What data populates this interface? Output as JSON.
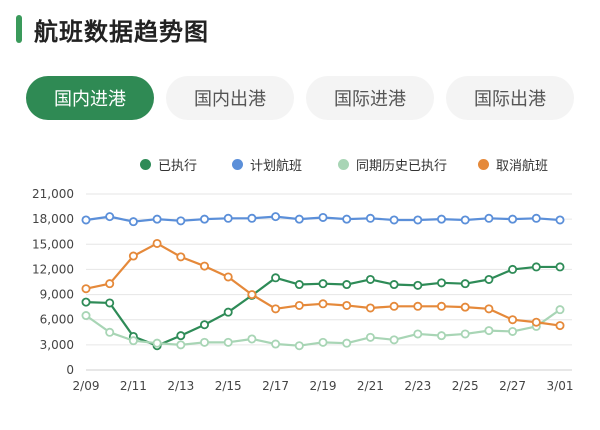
{
  "header": {
    "title": "航班数据趋势图",
    "accent_color": "#3a9a5b"
  },
  "tabs": [
    {
      "label": "国内进港",
      "active": true
    },
    {
      "label": "国内出港",
      "active": false
    },
    {
      "label": "国际进港",
      "active": false
    },
    {
      "label": "国际出港",
      "active": false
    }
  ],
  "chart_data": {
    "type": "line",
    "title": "",
    "xlabel": "",
    "ylabel": "",
    "ylim": [
      0,
      21000
    ],
    "yticks": [
      0,
      3000,
      6000,
      9000,
      12000,
      15000,
      18000,
      21000
    ],
    "ytick_labels": [
      "0",
      "3,000",
      "6,000",
      "9,000",
      "12,000",
      "15,000",
      "18,000",
      "21,000"
    ],
    "x": [
      "2/09",
      "2/10",
      "2/11",
      "2/12",
      "2/13",
      "2/14",
      "2/15",
      "2/16",
      "2/17",
      "2/18",
      "2/19",
      "2/20",
      "2/21",
      "2/22",
      "2/23",
      "2/24",
      "2/25",
      "2/26",
      "2/27",
      "2/28",
      "3/01"
    ],
    "xtick_labels": [
      "2/09",
      "2/11",
      "2/13",
      "2/15",
      "2/17",
      "2/19",
      "2/21",
      "2/23",
      "2/25",
      "2/27",
      "3/01"
    ],
    "grid": true,
    "legend_position": "top-right",
    "series": [
      {
        "name": "已执行",
        "color": "#2e8b57",
        "values": [
          8100,
          8000,
          4000,
          2900,
          4100,
          5400,
          6900,
          8900,
          11000,
          10200,
          10300,
          10200,
          10800,
          10200,
          10100,
          10400,
          10300,
          10800,
          12000,
          12300,
          12300
        ]
      },
      {
        "name": "计划航班",
        "color": "#5b8fd9",
        "values": [
          17900,
          18300,
          17700,
          18000,
          17800,
          18000,
          18100,
          18100,
          18300,
          18000,
          18200,
          18000,
          18100,
          17900,
          17900,
          18000,
          17900,
          18100,
          18000,
          18100,
          17900
        ]
      },
      {
        "name": "同期历史已执行",
        "color": "#a8d5b5",
        "values": [
          6500,
          4500,
          3500,
          3200,
          3000,
          3300,
          3300,
          3700,
          3100,
          2900,
          3300,
          3200,
          3900,
          3600,
          4300,
          4100,
          4300,
          4700,
          4600,
          5200,
          7200
        ]
      },
      {
        "name": "取消航班",
        "color": "#e5893a",
        "values": [
          9700,
          10300,
          13600,
          15100,
          13500,
          12400,
          11100,
          9000,
          7300,
          7700,
          7900,
          7700,
          7400,
          7600,
          7600,
          7600,
          7500,
          7300,
          6000,
          5700,
          5300
        ]
      }
    ]
  }
}
